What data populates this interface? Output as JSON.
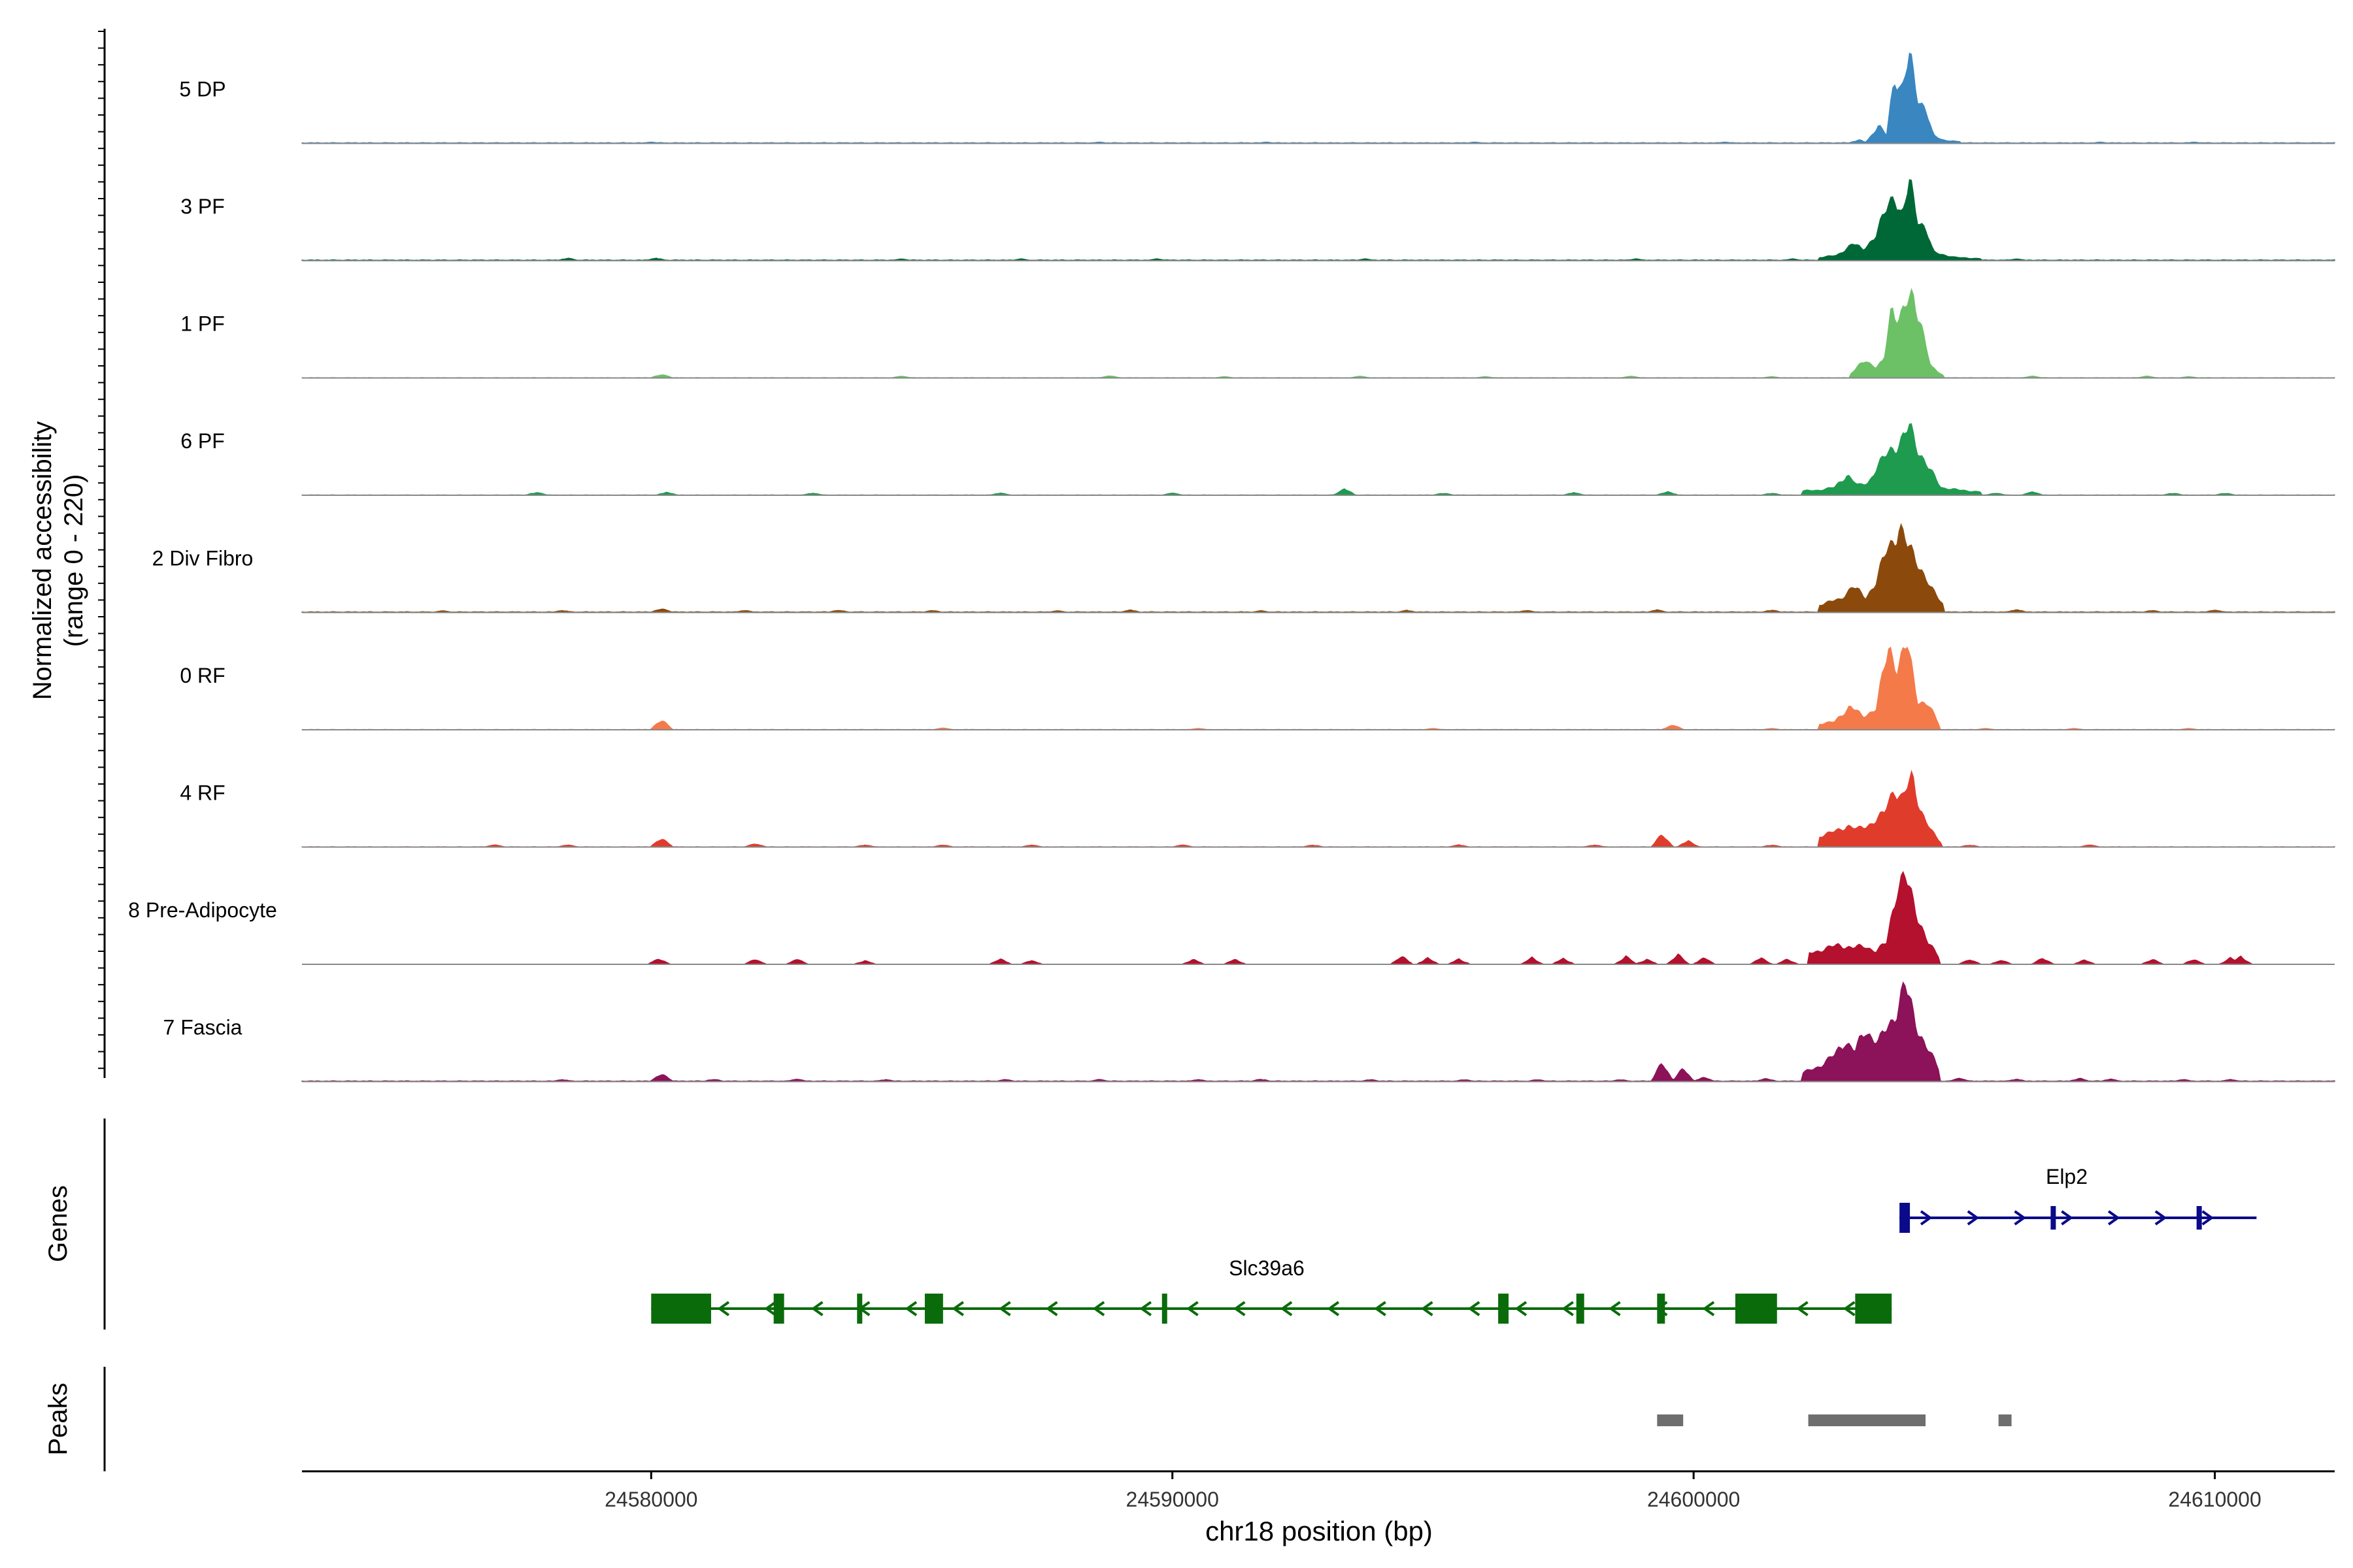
{
  "chart_data": {
    "type": "area",
    "chromosome": "chr18",
    "xlabel": "chr18 position (bp)",
    "xlim": [
      24573300,
      24612300
    ],
    "x_ticks": [
      24580000,
      24590000,
      24600000,
      24610000
    ],
    "x_tick_labels": [
      "24580000",
      "24590000",
      "24600000",
      "24610000"
    ],
    "ylabel_line1": "Normalized accessibility",
    "ylabel_line2": "(range 0 - 220)",
    "ylim": [
      0,
      220
    ],
    "tracks": [
      {
        "name": "5 DP",
        "color": "#3a86c0",
        "baseline": 2,
        "small": [
          [
            24580000,
            3
          ],
          [
            24588600,
            3
          ],
          [
            24591800,
            3
          ],
          [
            24595800,
            3
          ],
          [
            24600600,
            3
          ],
          [
            24607800,
            3
          ],
          [
            24609600,
            3
          ]
        ],
        "peaks": [
          [
            24603000,
            2
          ],
          [
            24603200,
            8
          ],
          [
            24603300,
            3
          ],
          [
            24603550,
            40
          ],
          [
            24603700,
            20
          ],
          [
            24603850,
            160
          ],
          [
            24604000,
            120
          ],
          [
            24604150,
            200
          ],
          [
            24604300,
            110
          ],
          [
            24604450,
            80
          ],
          [
            24604600,
            18
          ],
          [
            24604800,
            8
          ],
          [
            24605100,
            4
          ]
        ]
      },
      {
        "name": "3 PF",
        "color": "#006837",
        "baseline": 2,
        "small": [
          [
            24578400,
            6
          ],
          [
            24580100,
            6
          ],
          [
            24584800,
            4
          ],
          [
            24587100,
            4
          ],
          [
            24589700,
            4
          ],
          [
            24593700,
            4
          ],
          [
            24598900,
            4
          ],
          [
            24601900,
            4
          ],
          [
            24606200,
            4
          ]
        ],
        "peaks": [
          [
            24602400,
            8
          ],
          [
            24602750,
            12
          ],
          [
            24603050,
            40
          ],
          [
            24603250,
            25
          ],
          [
            24603500,
            60
          ],
          [
            24603850,
            160
          ],
          [
            24604000,
            100
          ],
          [
            24604150,
            180
          ],
          [
            24604300,
            100
          ],
          [
            24604450,
            75
          ],
          [
            24604600,
            20
          ],
          [
            24605000,
            8
          ],
          [
            24605500,
            5
          ]
        ]
      },
      {
        "name": "1 PF",
        "color": "#6cc066",
        "baseline": 1,
        "small": [
          [
            24580200,
            9
          ],
          [
            24584800,
            4
          ],
          [
            24588800,
            5
          ],
          [
            24591000,
            3
          ],
          [
            24593600,
            4
          ],
          [
            24596000,
            3
          ],
          [
            24598800,
            4
          ],
          [
            24601500,
            3
          ],
          [
            24606500,
            4
          ],
          [
            24608700,
            4
          ],
          [
            24609500,
            3
          ]
        ],
        "peaks": [
          [
            24603000,
            8
          ],
          [
            24603300,
            42
          ],
          [
            24603500,
            25
          ],
          [
            24603650,
            38
          ],
          [
            24603800,
            170
          ],
          [
            24603950,
            140
          ],
          [
            24604200,
            185
          ],
          [
            24604350,
            140
          ],
          [
            24604550,
            25
          ],
          [
            24604800,
            6
          ]
        ]
      },
      {
        "name": "6 PF",
        "color": "#1e9b4f",
        "baseline": 1,
        "small": [
          [
            24577800,
            7
          ],
          [
            24580300,
            7
          ],
          [
            24583100,
            5
          ],
          [
            24586700,
            5
          ],
          [
            24590000,
            5
          ],
          [
            24593300,
            16
          ],
          [
            24595200,
            5
          ],
          [
            24597700,
            6
          ],
          [
            24599500,
            9
          ],
          [
            24601500,
            5
          ],
          [
            24605800,
            5
          ],
          [
            24606500,
            8
          ],
          [
            24609200,
            5
          ],
          [
            24610200,
            5
          ]
        ],
        "peaks": [
          [
            24602100,
            10
          ],
          [
            24602400,
            12
          ],
          [
            24602700,
            18
          ],
          [
            24602950,
            48
          ],
          [
            24603150,
            22
          ],
          [
            24603350,
            30
          ],
          [
            24603500,
            60
          ],
          [
            24603800,
            110
          ],
          [
            24603950,
            120
          ],
          [
            24604150,
            155
          ],
          [
            24604300,
            110
          ],
          [
            24604500,
            65
          ],
          [
            24604750,
            18
          ],
          [
            24605100,
            12
          ],
          [
            24605500,
            8
          ]
        ]
      },
      {
        "name": "2 Div Fibro",
        "color": "#8b4a0c",
        "baseline": 2,
        "small": [
          [
            24576000,
            4
          ],
          [
            24578300,
            5
          ],
          [
            24580200,
            10
          ],
          [
            24581800,
            5
          ],
          [
            24583600,
            6
          ],
          [
            24585400,
            5
          ],
          [
            24587800,
            4
          ],
          [
            24589200,
            6
          ],
          [
            24591700,
            4
          ],
          [
            24594500,
            5
          ],
          [
            24596800,
            5
          ],
          [
            24599300,
            6
          ],
          [
            24601500,
            6
          ],
          [
            24603000,
            8
          ],
          [
            24606200,
            7
          ],
          [
            24608800,
            5
          ],
          [
            24610000,
            6
          ]
        ],
        "peaks": [
          [
            24602400,
            18
          ],
          [
            24602800,
            30
          ],
          [
            24603050,
            60
          ],
          [
            24603300,
            35
          ],
          [
            24603500,
            70
          ],
          [
            24603700,
            140
          ],
          [
            24603950,
            200
          ],
          [
            24604100,
            150
          ],
          [
            24604300,
            120
          ],
          [
            24604550,
            55
          ],
          [
            24604800,
            18
          ]
        ]
      },
      {
        "name": "0 RF",
        "color": "#f47a4a",
        "baseline": 1,
        "small": [
          [
            24580200,
            25
          ],
          [
            24585600,
            4
          ],
          [
            24590500,
            3
          ],
          [
            24595000,
            3
          ],
          [
            24599600,
            12
          ],
          [
            24601500,
            3
          ],
          [
            24605600,
            3
          ],
          [
            24607300,
            3
          ],
          [
            24609500,
            3
          ]
        ],
        "peaks": [
          [
            24602400,
            14
          ],
          [
            24602700,
            18
          ],
          [
            24603000,
            55
          ],
          [
            24603250,
            30
          ],
          [
            24603500,
            50
          ],
          [
            24603750,
            190
          ],
          [
            24603900,
            150
          ],
          [
            24604100,
            190
          ],
          [
            24604300,
            70
          ],
          [
            24604500,
            58
          ],
          [
            24604700,
            15
          ]
        ]
      },
      {
        "name": "4 RF",
        "color": "#e03c2c",
        "baseline": 1,
        "small": [
          [
            24577000,
            5
          ],
          [
            24578400,
            5
          ],
          [
            24580200,
            22
          ],
          [
            24582000,
            8
          ],
          [
            24584100,
            5
          ],
          [
            24585600,
            5
          ],
          [
            24587300,
            5
          ],
          [
            24590200,
            5
          ],
          [
            24592700,
            5
          ],
          [
            24595500,
            5
          ],
          [
            24598100,
            5
          ],
          [
            24599400,
            30
          ],
          [
            24599900,
            15
          ],
          [
            24601500,
            5
          ],
          [
            24605300,
            5
          ],
          [
            24607600,
            5
          ]
        ],
        "peaks": [
          [
            24602400,
            25
          ],
          [
            24602700,
            35
          ],
          [
            24602950,
            50
          ],
          [
            24603150,
            40
          ],
          [
            24603400,
            55
          ],
          [
            24603650,
            75
          ],
          [
            24603850,
            140
          ],
          [
            24604000,
            110
          ],
          [
            24604200,
            160
          ],
          [
            24604350,
            90
          ],
          [
            24604550,
            38
          ],
          [
            24604750,
            10
          ]
        ]
      },
      {
        "name": "8 Pre-Adipocyte",
        "color": "#b3112e",
        "baseline": 0,
        "small": [
          [
            24580150,
            14
          ],
          [
            24582000,
            12
          ],
          [
            24582800,
            12
          ],
          [
            24584100,
            9
          ],
          [
            24586700,
            12
          ],
          [
            24587300,
            9
          ],
          [
            24590400,
            12
          ],
          [
            24591200,
            12
          ],
          [
            24594400,
            18
          ],
          [
            24594900,
            14
          ],
          [
            24595500,
            12
          ],
          [
            24596900,
            15
          ],
          [
            24597500,
            14
          ],
          [
            24598700,
            18
          ],
          [
            24599100,
            12
          ],
          [
            24599700,
            22
          ],
          [
            24600200,
            15
          ],
          [
            24601300,
            15
          ],
          [
            24601800,
            12
          ],
          [
            24605300,
            12
          ],
          [
            24605900,
            10
          ],
          [
            24606700,
            15
          ],
          [
            24607500,
            10
          ],
          [
            24608800,
            12
          ],
          [
            24609600,
            12
          ],
          [
            24610300,
            15
          ],
          [
            24610500,
            18
          ]
        ],
        "peaks": [
          [
            24602200,
            25
          ],
          [
            24602500,
            35
          ],
          [
            24602800,
            45
          ],
          [
            24603050,
            38
          ],
          [
            24603300,
            42
          ],
          [
            24603500,
            30
          ],
          [
            24603700,
            50
          ],
          [
            24603900,
            180
          ],
          [
            24604050,
            200
          ],
          [
            24604250,
            130
          ],
          [
            24604500,
            50
          ],
          [
            24604700,
            18
          ]
        ]
      },
      {
        "name": "7 Fascia",
        "color": "#8c1259",
        "baseline": 2,
        "small": [
          [
            24578300,
            5
          ],
          [
            24580200,
            20
          ],
          [
            24581200,
            6
          ],
          [
            24582800,
            6
          ],
          [
            24584500,
            5
          ],
          [
            24586800,
            5
          ],
          [
            24588600,
            5
          ],
          [
            24590500,
            5
          ],
          [
            24591700,
            6
          ],
          [
            24593800,
            5
          ],
          [
            24595600,
            5
          ],
          [
            24597000,
            5
          ],
          [
            24598600,
            5
          ],
          [
            24599400,
            45
          ],
          [
            24599800,
            30
          ],
          [
            24600200,
            10
          ],
          [
            24601400,
            8
          ],
          [
            24605100,
            8
          ],
          [
            24606200,
            6
          ],
          [
            24607400,
            8
          ],
          [
            24608000,
            6
          ],
          [
            24609400,
            5
          ],
          [
            24610300,
            5
          ]
        ],
        "peaks": [
          [
            24602100,
            20
          ],
          [
            24602400,
            35
          ],
          [
            24602700,
            60
          ],
          [
            24602900,
            95
          ],
          [
            24603100,
            70
          ],
          [
            24603300,
            120
          ],
          [
            24603550,
            90
          ],
          [
            24603800,
            140
          ],
          [
            24604050,
            220
          ],
          [
            24604250,
            140
          ],
          [
            24604450,
            85
          ],
          [
            24604700,
            30
          ]
        ]
      }
    ],
    "genes_label": "Genes",
    "genes": [
      {
        "name": "Elp2",
        "strand": "+",
        "color": "#0a0a8a",
        "start": 24603950,
        "end": 24610800,
        "row": 0,
        "exons": [
          [
            24603950,
            24604150
          ],
          [
            24606850,
            24606950
          ],
          [
            24609650,
            24609750
          ]
        ]
      },
      {
        "name": "Slc39a6",
        "strand": "-",
        "color": "#0a6b0a",
        "start": 24580000,
        "end": 24603800,
        "row": 1,
        "exons": [
          [
            24580000,
            24581150
          ],
          [
            24582350,
            24582550
          ],
          [
            24583950,
            24584050
          ],
          [
            24585250,
            24585600
          ],
          [
            24589800,
            24589900
          ],
          [
            24596250,
            24596450
          ],
          [
            24597750,
            24597900
          ],
          [
            24599300,
            24599450
          ],
          [
            24600800,
            24601600
          ],
          [
            24603100,
            24603800
          ]
        ]
      }
    ],
    "peaks_label": "Peaks",
    "peak_regions": [
      [
        24599300,
        24599800
      ],
      [
        24602200,
        24604450
      ],
      [
        24605850,
        24606100
      ]
    ],
    "peak_color": "#6e6e6e"
  }
}
